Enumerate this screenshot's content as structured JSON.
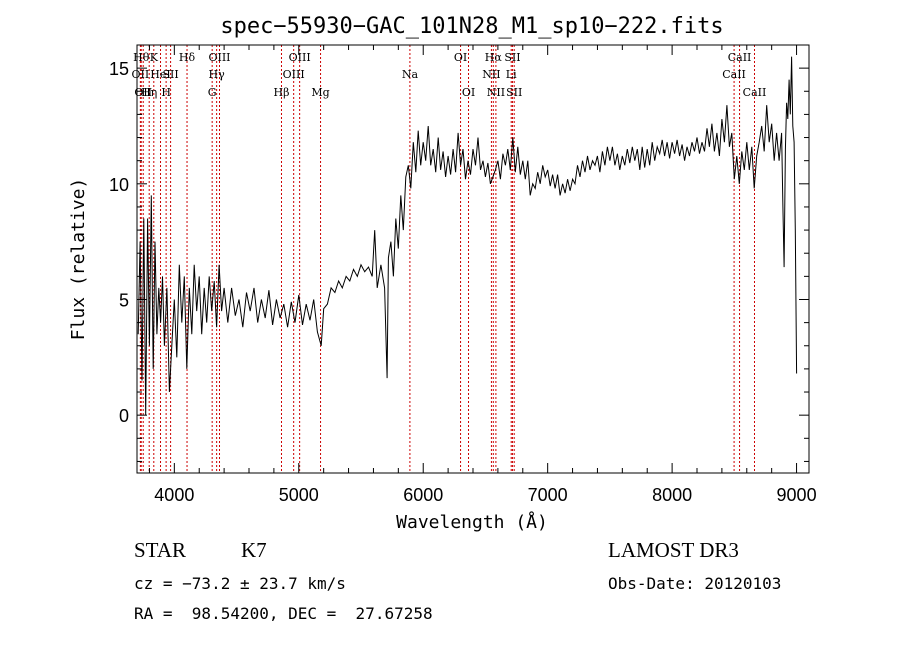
{
  "chart_data": {
    "type": "line",
    "title": "spec−55930−GAC_101N28_M1_sp10−222.fits",
    "xlabel": "Wavelength (Å)",
    "ylabel": "Flux (relative)",
    "xlim": [
      3700,
      9100
    ],
    "ylim": [
      -2.5,
      16
    ],
    "xticks": [
      4000,
      5000,
      6000,
      7000,
      8000,
      9000
    ],
    "yticks": [
      0,
      5,
      10,
      15
    ],
    "grid": false,
    "series": [
      {
        "points": [
          [
            3710,
            3.5
          ],
          [
            3725,
            7.5
          ],
          [
            3740,
            1.5
          ],
          [
            3755,
            8.5
          ],
          [
            3770,
            0.0
          ],
          [
            3785,
            8.5
          ],
          [
            3800,
            3.0
          ],
          [
            3815,
            9.5
          ],
          [
            3830,
            2.0
          ],
          [
            3845,
            7.5
          ],
          [
            3860,
            3.5
          ],
          [
            3875,
            5.5
          ],
          [
            3890,
            4.0
          ],
          [
            3905,
            6.0
          ],
          [
            3920,
            3.0
          ],
          [
            3940,
            5.5
          ],
          [
            3960,
            1.0
          ],
          [
            3980,
            3.0
          ],
          [
            4000,
            5.0
          ],
          [
            4020,
            2.5
          ],
          [
            4040,
            6.5
          ],
          [
            4060,
            4.0
          ],
          [
            4080,
            6.0
          ],
          [
            4100,
            2.0
          ],
          [
            4120,
            5.5
          ],
          [
            4140,
            3.5
          ],
          [
            4160,
            6.5
          ],
          [
            4180,
            4.5
          ],
          [
            4200,
            6.0
          ],
          [
            4220,
            3.5
          ],
          [
            4240,
            5.5
          ],
          [
            4260,
            4.0
          ],
          [
            4280,
            6.0
          ],
          [
            4300,
            4.5
          ],
          [
            4320,
            5.8
          ],
          [
            4340,
            3.8
          ],
          [
            4360,
            6.5
          ],
          [
            4380,
            4.5
          ],
          [
            4400,
            5.5
          ],
          [
            4430,
            4.0
          ],
          [
            4460,
            5.5
          ],
          [
            4490,
            4.3
          ],
          [
            4520,
            5.0
          ],
          [
            4550,
            3.8
          ],
          [
            4580,
            5.3
          ],
          [
            4610,
            4.5
          ],
          [
            4640,
            5.5
          ],
          [
            4670,
            4.0
          ],
          [
            4700,
            5.0
          ],
          [
            4730,
            4.2
          ],
          [
            4760,
            5.4
          ],
          [
            4790,
            3.9
          ],
          [
            4820,
            5.0
          ],
          [
            4850,
            4.2
          ],
          [
            4880,
            4.8
          ],
          [
            4910,
            3.8
          ],
          [
            4940,
            4.9
          ],
          [
            4970,
            4.0
          ],
          [
            5000,
            5.2
          ],
          [
            5030,
            3.9
          ],
          [
            5060,
            4.8
          ],
          [
            5090,
            4.1
          ],
          [
            5120,
            5.0
          ],
          [
            5150,
            3.6
          ],
          [
            5180,
            3.0
          ],
          [
            5200,
            4.6
          ],
          [
            5230,
            4.8
          ],
          [
            5260,
            5.5
          ],
          [
            5290,
            5.3
          ],
          [
            5320,
            5.8
          ],
          [
            5350,
            5.5
          ],
          [
            5380,
            6.0
          ],
          [
            5410,
            5.8
          ],
          [
            5440,
            6.3
          ],
          [
            5470,
            6.0
          ],
          [
            5500,
            6.5
          ],
          [
            5530,
            6.2
          ],
          [
            5560,
            6.4
          ],
          [
            5590,
            6.0
          ],
          [
            5610,
            8.0
          ],
          [
            5630,
            5.5
          ],
          [
            5660,
            6.5
          ],
          [
            5690,
            5.5
          ],
          [
            5710,
            1.6
          ],
          [
            5720,
            6.8
          ],
          [
            5740,
            7.5
          ],
          [
            5760,
            6.0
          ],
          [
            5780,
            8.5
          ],
          [
            5800,
            7.2
          ],
          [
            5820,
            9.5
          ],
          [
            5840,
            8.0
          ],
          [
            5860,
            10.3
          ],
          [
            5880,
            10.8
          ],
          [
            5900,
            9.8
          ],
          [
            5920,
            11.8
          ],
          [
            5940,
            10.5
          ],
          [
            5960,
            12.3
          ],
          [
            5980,
            10.8
          ],
          [
            6000,
            11.8
          ],
          [
            6020,
            11.0
          ],
          [
            6040,
            12.5
          ],
          [
            6060,
            10.8
          ],
          [
            6080,
            11.5
          ],
          [
            6100,
            10.5
          ],
          [
            6120,
            12.0
          ],
          [
            6140,
            10.6
          ],
          [
            6160,
            11.4
          ],
          [
            6180,
            10.3
          ],
          [
            6200,
            11.2
          ],
          [
            6220,
            10.4
          ],
          [
            6240,
            11.5
          ],
          [
            6260,
            10.5
          ],
          [
            6280,
            12.2
          ],
          [
            6300,
            10.8
          ],
          [
            6320,
            11.5
          ],
          [
            6340,
            10.2
          ],
          [
            6360,
            11.0
          ],
          [
            6380,
            10.4
          ],
          [
            6400,
            11.5
          ],
          [
            6420,
            10.8
          ],
          [
            6440,
            12.0
          ],
          [
            6460,
            10.6
          ],
          [
            6480,
            11.0
          ],
          [
            6500,
            10.3
          ],
          [
            6520,
            10.9
          ],
          [
            6540,
            10.0
          ],
          [
            6560,
            10.3
          ],
          [
            6580,
            10.6
          ],
          [
            6600,
            11.0
          ],
          [
            6620,
            10.2
          ],
          [
            6640,
            11.3
          ],
          [
            6660,
            10.8
          ],
          [
            6680,
            11.5
          ],
          [
            6700,
            10.6
          ],
          [
            6720,
            12.0
          ],
          [
            6740,
            10.5
          ],
          [
            6760,
            11.6
          ],
          [
            6780,
            10.4
          ],
          [
            6800,
            11.0
          ],
          [
            6820,
            10.2
          ],
          [
            6840,
            11.0
          ],
          [
            6860,
            9.5
          ],
          [
            6880,
            10.0
          ],
          [
            6900,
            9.8
          ],
          [
            6920,
            10.5
          ],
          [
            6940,
            10.0
          ],
          [
            6960,
            10.8
          ],
          [
            6980,
            10.3
          ],
          [
            7000,
            10.6
          ],
          [
            7020,
            9.9
          ],
          [
            7040,
            10.4
          ],
          [
            7060,
            9.8
          ],
          [
            7080,
            10.4
          ],
          [
            7100,
            9.5
          ],
          [
            7120,
            10.0
          ],
          [
            7140,
            9.6
          ],
          [
            7160,
            10.2
          ],
          [
            7180,
            9.7
          ],
          [
            7200,
            10.2
          ],
          [
            7220,
            10.0
          ],
          [
            7240,
            10.8
          ],
          [
            7260,
            10.3
          ],
          [
            7280,
            11.0
          ],
          [
            7300,
            10.5
          ],
          [
            7320,
            11.2
          ],
          [
            7340,
            10.6
          ],
          [
            7360,
            11.0
          ],
          [
            7380,
            10.8
          ],
          [
            7400,
            11.2
          ],
          [
            7420,
            10.5
          ],
          [
            7440,
            11.4
          ],
          [
            7460,
            10.8
          ],
          [
            7480,
            11.6
          ],
          [
            7500,
            11.0
          ],
          [
            7520,
            11.6
          ],
          [
            7540,
            10.8
          ],
          [
            7560,
            11.3
          ],
          [
            7580,
            10.6
          ],
          [
            7600,
            11.2
          ],
          [
            7620,
            10.8
          ],
          [
            7640,
            11.5
          ],
          [
            7660,
            10.9
          ],
          [
            7680,
            11.6
          ],
          [
            7700,
            11.0
          ],
          [
            7720,
            11.5
          ],
          [
            7740,
            10.6
          ],
          [
            7760,
            11.6
          ],
          [
            7780,
            10.7
          ],
          [
            7800,
            11.5
          ],
          [
            7820,
            10.8
          ],
          [
            7840,
            11.8
          ],
          [
            7860,
            11.0
          ],
          [
            7880,
            11.6
          ],
          [
            7900,
            11.3
          ],
          [
            7920,
            11.9
          ],
          [
            7940,
            11.2
          ],
          [
            7960,
            11.8
          ],
          [
            7980,
            11.1
          ],
          [
            8000,
            11.8
          ],
          [
            8020,
            11.3
          ],
          [
            8040,
            11.9
          ],
          [
            8060,
            11.2
          ],
          [
            8080,
            11.7
          ],
          [
            8100,
            11.0
          ],
          [
            8120,
            11.6
          ],
          [
            8140,
            11.2
          ],
          [
            8160,
            11.8
          ],
          [
            8180,
            11.4
          ],
          [
            8200,
            12.0
          ],
          [
            8220,
            11.3
          ],
          [
            8240,
            11.8
          ],
          [
            8260,
            11.4
          ],
          [
            8280,
            12.4
          ],
          [
            8300,
            11.6
          ],
          [
            8320,
            12.6
          ],
          [
            8340,
            11.4
          ],
          [
            8360,
            12.2
          ],
          [
            8380,
            11.2
          ],
          [
            8400,
            12.8
          ],
          [
            8420,
            11.8
          ],
          [
            8440,
            13.4
          ],
          [
            8460,
            11.6
          ],
          [
            8480,
            12.2
          ],
          [
            8500,
            10.2
          ],
          [
            8520,
            11.2
          ],
          [
            8540,
            10.0
          ],
          [
            8560,
            11.4
          ],
          [
            8580,
            10.6
          ],
          [
            8600,
            11.8
          ],
          [
            8620,
            10.6
          ],
          [
            8640,
            11.6
          ],
          [
            8660,
            9.8
          ],
          [
            8680,
            11.2
          ],
          [
            8700,
            11.8
          ],
          [
            8720,
            12.5
          ],
          [
            8740,
            11.4
          ],
          [
            8760,
            13.4
          ],
          [
            8780,
            11.8
          ],
          [
            8800,
            12.6
          ],
          [
            8820,
            11.0
          ],
          [
            8840,
            12.2
          ],
          [
            8860,
            11.0
          ],
          [
            8880,
            12.2
          ],
          [
            8890,
            9.0
          ],
          [
            8900,
            6.4
          ],
          [
            8910,
            11.5
          ],
          [
            8920,
            13.5
          ],
          [
            8930,
            12.8
          ],
          [
            8940,
            14.5
          ],
          [
            8950,
            13.0
          ],
          [
            8960,
            15.5
          ],
          [
            8970,
            12.5
          ],
          [
            8980,
            11.8
          ],
          [
            8990,
            8.0
          ],
          [
            9000,
            1.8
          ]
        ]
      }
    ],
    "lines": [
      {
        "x": 3734,
        "label": "Hθ",
        "row": 1
      },
      {
        "x": 3727,
        "label": "OII",
        "row": 2
      },
      {
        "x": 3750,
        "label": "OII",
        "row": 3
      },
      {
        "x": 3798,
        "label": "Hη",
        "row": 3
      },
      {
        "x": 3835,
        "label": "K",
        "row": 1
      },
      {
        "x": 3889,
        "label": "HeI",
        "row": 2
      },
      {
        "x": 3934,
        "label": "H",
        "row": 3
      },
      {
        "x": 3970,
        "label": "SII",
        "row": 2
      },
      {
        "x": 4102,
        "label": "Hδ",
        "row": 1
      },
      {
        "x": 4304,
        "label": "G",
        "row": 3
      },
      {
        "x": 4340,
        "label": "Hγ",
        "row": 2
      },
      {
        "x": 4363,
        "label": "OIII",
        "row": 1
      },
      {
        "x": 4861,
        "label": "Hβ",
        "row": 3
      },
      {
        "x": 4959,
        "label": "OIII",
        "row": 2
      },
      {
        "x": 5007,
        "label": "OIII",
        "row": 1
      },
      {
        "x": 5175,
        "label": "Mg",
        "row": 3
      },
      {
        "x": 5893,
        "label": "Na",
        "row": 2
      },
      {
        "x": 6300,
        "label": "OI",
        "row": 1
      },
      {
        "x": 6364,
        "label": "OI",
        "row": 3
      },
      {
        "x": 6548,
        "label": "NII",
        "row": 2
      },
      {
        "x": 6563,
        "label": "Hα",
        "row": 1
      },
      {
        "x": 6584,
        "label": "NII",
        "row": 3
      },
      {
        "x": 6707,
        "label": "Li",
        "row": 2
      },
      {
        "x": 6717,
        "label": "SII",
        "row": 1
      },
      {
        "x": 6731,
        "label": "SII",
        "row": 3
      },
      {
        "x": 8498,
        "label": "CaII",
        "row": 2
      },
      {
        "x": 8542,
        "label": "CaII",
        "row": 1
      },
      {
        "x": 8662,
        "label": "CaII",
        "row": 3
      }
    ]
  },
  "info": {
    "class_label": "STAR",
    "subclass_label": "K7",
    "survey_label": "LAMOST DR3",
    "cz_text": "cz = −73.2 ± 23.7 km/s",
    "obs_date_text": "Obs-Date: 20120103",
    "coords_text": "RA =  98.54200, DEC =  27.67258"
  }
}
